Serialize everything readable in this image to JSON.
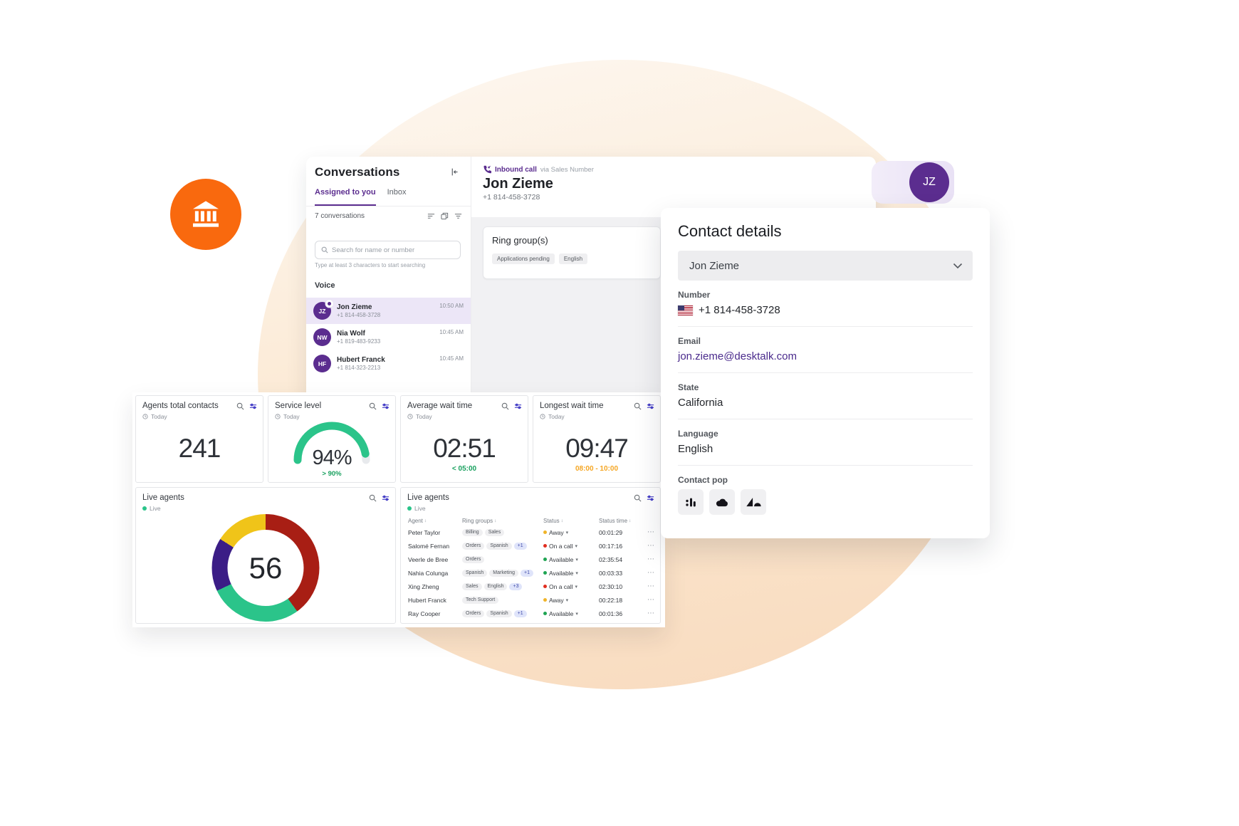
{
  "colors": {
    "accent_purple": "#5b2d8f",
    "brand_orange": "#f9690e",
    "gauge_green": "#2bc48a",
    "target_green": "#18a05e",
    "target_amber": "#f5a623",
    "status_away": "#f0b429",
    "status_on_call": "#e12d1f",
    "status_available": "#1fa452"
  },
  "avatar_chip": {
    "initials": "JZ"
  },
  "conversations": {
    "title": "Conversations",
    "tabs": [
      {
        "label": "Assigned to you",
        "active": true
      },
      {
        "label": "Inbox",
        "active": false
      }
    ],
    "count_label": "7 conversations",
    "search": {
      "placeholder": "Search for name or number",
      "hint": "Type at least 3 characters to start searching"
    },
    "section_label": "Voice",
    "items": [
      {
        "initials": "JZ",
        "name": "Jon Zieme",
        "number": "+1 814-458-3728",
        "time": "10:50 AM",
        "selected": true,
        "badge": true
      },
      {
        "initials": "NW",
        "name": "Nia Wolf",
        "number": "+1 819-483-9233",
        "time": "10:45 AM",
        "selected": false,
        "badge": false
      },
      {
        "initials": "HF",
        "name": "Hubert Franck",
        "number": "+1 814-323-2213",
        "time": "10:45 AM",
        "selected": false,
        "badge": false
      }
    ]
  },
  "call_panel": {
    "type_label": "Inbound call",
    "via_label": "via Sales Number",
    "contact_name": "Jon Zieme",
    "contact_number": "+1 814-458-3728",
    "ring_groups": {
      "title": "Ring group(s)",
      "chips": [
        "Applications pending",
        "English"
      ]
    }
  },
  "contact_details": {
    "title": "Contact details",
    "selected_contact": "Jon Zieme",
    "number_label": "Number",
    "number_value": "+1 814-458-3728",
    "email_label": "Email",
    "email_value": "jon.zieme@desktalk.com",
    "state_label": "State",
    "state_value": "California",
    "language_label": "Language",
    "language_value": "English",
    "contact_pop_label": "Contact pop",
    "contact_pop_icons": [
      "dots-bars-logo-icon",
      "cloud-logo-icon",
      "zendesk-logo-icon"
    ]
  },
  "dashboard": {
    "metric_cards": [
      {
        "title": "Agents total contacts",
        "period": "Today",
        "value": "241",
        "type": "number"
      },
      {
        "title": "Service level",
        "period": "Today",
        "value": "94%",
        "target": "> 90%",
        "target_color": "#18a05e",
        "type": "gauge",
        "gauge_pct": 94
      },
      {
        "title": "Average wait time",
        "period": "Today",
        "value": "02:51",
        "target": "< 05:00",
        "target_color": "#18a05e",
        "type": "number"
      },
      {
        "title": "Longest wait time",
        "period": "Today",
        "value": "09:47",
        "target": "08:00 - 10:00",
        "target_color": "#f5a623",
        "type": "number"
      }
    ],
    "donut_card": {
      "title": "Live agents",
      "period": "Live",
      "total": "56",
      "segments": [
        {
          "color": "#a81e14",
          "pct": 40
        },
        {
          "color": "#2bc48a",
          "pct": 28
        },
        {
          "color": "#3b1d86",
          "pct": 16
        },
        {
          "color": "#f0c419",
          "pct": 16
        }
      ]
    },
    "table_card": {
      "title": "Live agents",
      "period": "Live",
      "columns": [
        "Agent",
        "Ring groups",
        "Status",
        "Status time"
      ],
      "rows": [
        {
          "agent": "Peter Taylor",
          "groups": [
            "Billing",
            "Sales"
          ],
          "extra": null,
          "status": "Away",
          "status_key": "away",
          "time": "00:01:29"
        },
        {
          "agent": "Salomé Fernan",
          "groups": [
            "Orders",
            "Spanish"
          ],
          "extra": "+1",
          "status": "On a call",
          "status_key": "oncall",
          "time": "00:17:16"
        },
        {
          "agent": "Veerle de Bree",
          "groups": [
            "Orders"
          ],
          "extra": null,
          "status": "Available",
          "status_key": "available",
          "time": "02:35:54"
        },
        {
          "agent": "Nahia Colunga",
          "groups": [
            "Spanish",
            "Marketing"
          ],
          "extra": "+1",
          "status": "Available",
          "status_key": "available",
          "time": "00:03:33"
        },
        {
          "agent": "Xing Zheng",
          "groups": [
            "Sales",
            "English"
          ],
          "extra": "+3",
          "status": "On a call",
          "status_key": "oncall",
          "time": "02:30:10"
        },
        {
          "agent": "Hubert Franck",
          "groups": [
            "Tech Support"
          ],
          "extra": null,
          "status": "Away",
          "status_key": "away",
          "time": "00:22:18"
        },
        {
          "agent": "Ray Cooper",
          "groups": [
            "Orders",
            "Spanish"
          ],
          "extra": "+1",
          "status": "Available",
          "status_key": "available",
          "time": "00:01:36"
        }
      ]
    }
  }
}
